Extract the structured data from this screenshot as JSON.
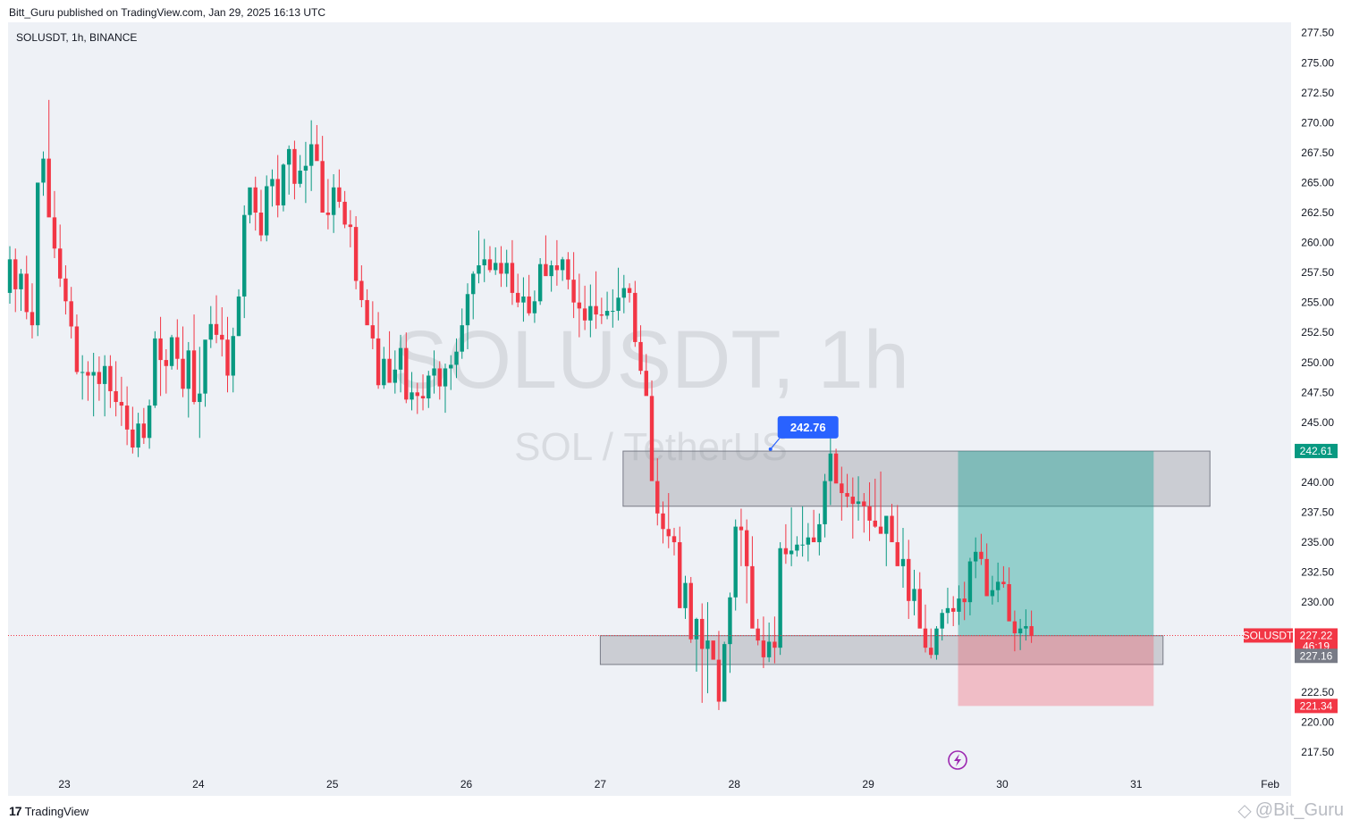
{
  "header": {
    "publish_line": "Bitt_Guru published on TradingView.com, Jan 29, 2025 16:13 UTC"
  },
  "chart_data": {
    "type": "candlestick",
    "symbol_line": "SOLUSDT, 1h, BINANCE",
    "watermark": {
      "line1": "SOLUSDT, 1h",
      "line2": "SOL / TetherUS"
    },
    "ylim": [
      216,
      278
    ],
    "y_ticks": [
      "277.50",
      "275.00",
      "272.50",
      "270.00",
      "267.50",
      "265.00",
      "262.50",
      "260.00",
      "257.50",
      "255.00",
      "252.50",
      "250.00",
      "247.50",
      "245.00",
      "240.00",
      "237.50",
      "235.00",
      "232.50",
      "230.00",
      "222.50",
      "220.00",
      "217.50"
    ],
    "x_ticks": [
      "23",
      "24",
      "25",
      "26",
      "27",
      "28",
      "29",
      "30",
      "31",
      "Feb"
    ],
    "colors": {
      "up": "#089981",
      "down": "#f23645",
      "zone": "#9598a1",
      "target": "#26a69a",
      "stop": "#f7525f",
      "callout": "#2962ff"
    },
    "zones": [
      {
        "name": "resistance-zone",
        "from_day": 27.17,
        "to_day": 31.55,
        "low": 238.0,
        "high": 242.6
      },
      {
        "name": "support-zone",
        "from_day": 27.0,
        "to_day": 31.2,
        "low": 224.8,
        "high": 227.2
      }
    ],
    "position": {
      "from_day": 29.67,
      "to_day": 31.13,
      "entry": 227.2,
      "target": 242.61,
      "stop": 221.34
    },
    "callout": {
      "label": "242.76",
      "price": 242.76,
      "day": 28.27
    },
    "current_price": 227.22,
    "price_labels": [
      {
        "name": "target-price-label",
        "text": "242.61",
        "price": 242.61,
        "color": "#089981"
      },
      {
        "name": "symbol-price-label",
        "text": "227.22",
        "price": 227.22,
        "color": "#f23645",
        "symbol": "SOLUSDT",
        "countdown": "46:19"
      },
      {
        "name": "entry-price-label",
        "text": "227.16",
        "price": 227.16,
        "color": "#787b86"
      },
      {
        "name": "stop-price-label",
        "text": "221.34",
        "price": 221.34,
        "color": "#f23645"
      }
    ],
    "candles_hourly_ohlc": [
      [
        255.8,
        259.7,
        254.9,
        258.6
      ],
      [
        258.6,
        259.5,
        254.2,
        256.1
      ],
      [
        256.1,
        257.8,
        254.3,
        257.4
      ],
      [
        257.4,
        258.9,
        253.6,
        254.2
      ],
      [
        254.2,
        256.6,
        252.0,
        253.1
      ],
      [
        253.1,
        264.6,
        252.2,
        265.0
      ],
      [
        265.0,
        267.6,
        263.9,
        267.0
      ],
      [
        267.0,
        271.9,
        262.5,
        262.1
      ],
      [
        262.1,
        264.3,
        258.7,
        259.5
      ],
      [
        259.5,
        261.5,
        256.3,
        257.0
      ],
      [
        257.0,
        258.1,
        254.0,
        255.1
      ],
      [
        255.1,
        256.3,
        252.0,
        253.0
      ],
      [
        253.0,
        254.0,
        249.0,
        249.2
      ],
      [
        249.2,
        250.6,
        246.9,
        249.2
      ],
      [
        249.2,
        250.1,
        246.8,
        248.9
      ],
      [
        248.9,
        250.8,
        245.5,
        249.2
      ],
      [
        249.2,
        250.5,
        246.8,
        248.2
      ],
      [
        248.2,
        250.6,
        245.5,
        249.7
      ],
      [
        249.7,
        250.6,
        246.2,
        247.6
      ],
      [
        247.6,
        250.1,
        245.5,
        246.7
      ],
      [
        246.7,
        248.8,
        244.7,
        246.4
      ],
      [
        246.4,
        248.0,
        243.1,
        244.4
      ],
      [
        244.4,
        246.3,
        242.4,
        242.9
      ],
      [
        242.9,
        245.8,
        242.1,
        244.9
      ],
      [
        244.9,
        246.2,
        243.2,
        243.7
      ],
      [
        243.7,
        246.9,
        242.8,
        246.4
      ],
      [
        246.4,
        252.6,
        246.2,
        252.0
      ],
      [
        252.0,
        253.8,
        247.2,
        250.2
      ],
      [
        250.2,
        251.1,
        247.4,
        249.7
      ],
      [
        249.7,
        252.3,
        249.4,
        252.1
      ],
      [
        252.1,
        253.6,
        249.4,
        250.3
      ],
      [
        250.3,
        253.0,
        247.1,
        247.8
      ],
      [
        247.8,
        251.7,
        245.4,
        251.0
      ],
      [
        251.0,
        254.0,
        246.5,
        246.7
      ],
      [
        246.7,
        251.3,
        243.7,
        247.4
      ],
      [
        247.4,
        251.8,
        246.3,
        251.9
      ],
      [
        251.9,
        254.7,
        251.2,
        253.2
      ],
      [
        253.2,
        255.6,
        251.6,
        252.3
      ],
      [
        252.3,
        254.6,
        250.5,
        251.9
      ],
      [
        251.9,
        253.8,
        247.5,
        248.9
      ],
      [
        248.9,
        252.9,
        247.5,
        252.2
      ],
      [
        252.2,
        256.1,
        252.2,
        255.5
      ],
      [
        255.5,
        263.1,
        253.7,
        262.3
      ],
      [
        262.3,
        264.4,
        261.6,
        264.6
      ],
      [
        264.6,
        265.5,
        261.0,
        262.5
      ],
      [
        262.5,
        264.4,
        260.1,
        260.6
      ],
      [
        260.6,
        265.6,
        260.1,
        264.7
      ],
      [
        264.7,
        266.1,
        263.0,
        265.3
      ],
      [
        265.3,
        267.3,
        262.1,
        263.1
      ],
      [
        263.1,
        266.6,
        262.6,
        266.5
      ],
      [
        266.5,
        268.1,
        264.0,
        267.8
      ],
      [
        267.8,
        268.5,
        263.6,
        264.9
      ],
      [
        264.9,
        267.3,
        264.6,
        266.0
      ],
      [
        266.0,
        268.4,
        263.3,
        266.4
      ],
      [
        266.4,
        270.2,
        264.3,
        268.2
      ],
      [
        268.2,
        269.8,
        266.9,
        266.8
      ],
      [
        266.8,
        268.9,
        264.2,
        262.5
      ],
      [
        262.5,
        265.3,
        261.1,
        262.3
      ],
      [
        262.3,
        265.7,
        260.8,
        264.6
      ],
      [
        264.6,
        266.1,
        262.9,
        263.4
      ],
      [
        263.4,
        264.3,
        261.2,
        261.5
      ],
      [
        261.5,
        262.7,
        259.6,
        261.3
      ],
      [
        261.3,
        262.2,
        256.1,
        256.8
      ],
      [
        256.8,
        258.1,
        254.6,
        255.2
      ],
      [
        255.2,
        256.1,
        253.4,
        253.1
      ],
      [
        253.1,
        255.1,
        251.1,
        252.0
      ],
      [
        252.0,
        254.2,
        247.8,
        248.1
      ],
      [
        248.1,
        251.3,
        247.8,
        250.3
      ],
      [
        250.3,
        252.6,
        248.5,
        248.3
      ],
      [
        248.3,
        251.0,
        247.4,
        249.4
      ],
      [
        249.4,
        252.3,
        247.5,
        251.2
      ],
      [
        251.2,
        252.5,
        246.6,
        246.9
      ],
      [
        246.9,
        249.2,
        246.0,
        247.5
      ],
      [
        247.5,
        248.3,
        245.7,
        247.2
      ],
      [
        247.2,
        249.0,
        246.0,
        247.0
      ],
      [
        247.0,
        249.3,
        246.2,
        248.9
      ],
      [
        248.9,
        251.0,
        247.4,
        249.5
      ],
      [
        249.5,
        250.1,
        246.9,
        248.0
      ],
      [
        248.0,
        249.9,
        245.8,
        249.5
      ],
      [
        249.5,
        250.6,
        247.7,
        249.8
      ],
      [
        249.8,
        252.0,
        248.7,
        250.9
      ],
      [
        250.9,
        254.5,
        250.3,
        253.1
      ],
      [
        253.1,
        256.6,
        251.1,
        255.7
      ],
      [
        255.7,
        257.6,
        253.6,
        257.4
      ],
      [
        257.4,
        261.0,
        256.6,
        258.1
      ],
      [
        258.1,
        260.3,
        256.7,
        258.6
      ],
      [
        258.6,
        259.7,
        257.5,
        257.7
      ],
      [
        257.7,
        259.6,
        257.3,
        258.3
      ],
      [
        258.3,
        259.7,
        256.3,
        257.4
      ],
      [
        257.4,
        259.4,
        256.3,
        258.3
      ],
      [
        258.3,
        260.2,
        254.8,
        255.8
      ],
      [
        255.8,
        257.4,
        254.6,
        255.0
      ],
      [
        255.0,
        257.1,
        253.4,
        255.5
      ],
      [
        255.5,
        257.3,
        253.9,
        254.1
      ],
      [
        254.1,
        256.0,
        253.3,
        255.1
      ],
      [
        255.1,
        258.7,
        254.8,
        258.2
      ],
      [
        258.2,
        260.6,
        257.3,
        257.2
      ],
      [
        257.2,
        258.5,
        255.9,
        258.1
      ],
      [
        258.1,
        260.2,
        256.4,
        257.7
      ],
      [
        257.7,
        258.8,
        256.8,
        258.6
      ],
      [
        258.6,
        259.2,
        256.1,
        256.9
      ],
      [
        256.9,
        259.2,
        253.7,
        255.0
      ],
      [
        255.0,
        257.4,
        252.1,
        254.5
      ],
      [
        254.5,
        256.4,
        252.7,
        253.5
      ],
      [
        253.5,
        256.5,
        252.1,
        254.7
      ],
      [
        254.7,
        257.6,
        252.8,
        254.0
      ],
      [
        254.0,
        255.4,
        253.2,
        253.9
      ],
      [
        253.9,
        255.9,
        253.6,
        254.3
      ],
      [
        254.3,
        256.1,
        252.9,
        254.3
      ],
      [
        254.3,
        257.9,
        253.5,
        255.4
      ],
      [
        255.4,
        257.3,
        254.1,
        256.2
      ],
      [
        256.2,
        256.6,
        255.0,
        255.8
      ],
      [
        255.8,
        256.8,
        251.3,
        251.7
      ],
      [
        251.7,
        253.1,
        249.0,
        249.3
      ],
      [
        249.3,
        250.7,
        247.6,
        247.2
      ],
      [
        247.2,
        248.5,
        243.6,
        240.1
      ],
      [
        240.1,
        242.0,
        236.4,
        237.4
      ],
      [
        237.4,
        238.4,
        234.9,
        236.1
      ],
      [
        236.1,
        239.1,
        234.5,
        235.5
      ],
      [
        235.5,
        236.2,
        233.9,
        235.0
      ],
      [
        235.0,
        236.3,
        229.5,
        229.5
      ],
      [
        229.5,
        232.2,
        228.6,
        231.6
      ],
      [
        231.6,
        232.1,
        226.6,
        226.9
      ],
      [
        226.9,
        228.7,
        224.2,
        228.6
      ],
      [
        228.6,
        229.9,
        221.6,
        226.1
      ],
      [
        226.1,
        230.0,
        222.4,
        226.8
      ],
      [
        226.8,
        226.7,
        225.3,
        225.2
      ],
      [
        225.2,
        227.6,
        221.0,
        221.7
      ],
      [
        221.7,
        226.7,
        221.8,
        226.5
      ],
      [
        226.5,
        230.8,
        224.1,
        230.4
      ],
      [
        230.4,
        236.9,
        229.3,
        236.3
      ],
      [
        236.3,
        237.8,
        233.0,
        236.0
      ],
      [
        236.0,
        236.9,
        229.9,
        233.0
      ],
      [
        233.0,
        235.5,
        230.5,
        227.8
      ],
      [
        227.8,
        228.6,
        226.4,
        226.8
      ],
      [
        226.8,
        228.8,
        224.5,
        225.4
      ],
      [
        225.4,
        228.3,
        225.0,
        226.7
      ],
      [
        226.7,
        228.8,
        224.9,
        226.2
      ],
      [
        226.2,
        235.0,
        225.6,
        234.5
      ],
      [
        234.5,
        236.5,
        233.2,
        234.0
      ],
      [
        234.0,
        237.9,
        233.0,
        234.3
      ],
      [
        234.3,
        235.5,
        233.8,
        234.8
      ],
      [
        234.8,
        238.0,
        233.8,
        234.8
      ],
      [
        234.8,
        236.6,
        233.4,
        235.4
      ],
      [
        235.4,
        237.7,
        235.4,
        235.0
      ],
      [
        235.0,
        237.4,
        233.9,
        236.5
      ],
      [
        236.5,
        240.7,
        235.4,
        240.1
      ],
      [
        240.1,
        243.8,
        238.1,
        242.4
      ],
      [
        242.4,
        242.8,
        240.2,
        239.9
      ],
      [
        239.9,
        241.3,
        236.8,
        239.1
      ],
      [
        239.1,
        240.7,
        237.9,
        238.8
      ],
      [
        238.8,
        240.4,
        235.3,
        238.2
      ],
      [
        238.2,
        240.5,
        236.8,
        238.4
      ],
      [
        238.4,
        239.1,
        235.8,
        238.0
      ],
      [
        238.0,
        240.0,
        235.1,
        236.8
      ],
      [
        236.8,
        240.3,
        236.2,
        236.3
      ],
      [
        236.3,
        240.9,
        235.9,
        235.7
      ],
      [
        235.7,
        237.2,
        233.0,
        237.2
      ],
      [
        237.2,
        238.2,
        236.4,
        235.0
      ],
      [
        235.0,
        238.1,
        233.8,
        233.0
      ],
      [
        233.0,
        236.2,
        231.2,
        233.6
      ],
      [
        233.6,
        235.2,
        228.6,
        230.1
      ],
      [
        230.1,
        232.7,
        228.9,
        231.1
      ],
      [
        231.1,
        232.5,
        228.3,
        227.8
      ],
      [
        227.8,
        229.8,
        225.8,
        226.2
      ],
      [
        226.2,
        227.8,
        225.3,
        225.6
      ],
      [
        225.6,
        228.0,
        225.2,
        227.8
      ],
      [
        227.8,
        229.4,
        226.8,
        229.1
      ],
      [
        229.1,
        231.2,
        228.2,
        229.5
      ],
      [
        229.5,
        230.5,
        228.0,
        229.2
      ],
      [
        229.2,
        231.4,
        228.1,
        230.3
      ],
      [
        230.3,
        231.7,
        228.5,
        230.0
      ],
      [
        230.0,
        233.7,
        228.9,
        233.4
      ],
      [
        233.4,
        235.4,
        232.0,
        234.2
      ],
      [
        234.2,
        235.7,
        233.1,
        233.6
      ],
      [
        233.6,
        234.9,
        230.8,
        230.5
      ],
      [
        230.5,
        232.2,
        229.8,
        231.0
      ],
      [
        231.0,
        233.3,
        230.0,
        231.7
      ],
      [
        231.7,
        233.0,
        231.2,
        231.5
      ],
      [
        231.5,
        232.9,
        228.7,
        228.4
      ],
      [
        228.4,
        229.3,
        225.9,
        227.4
      ],
      [
        227.4,
        228.6,
        226.0,
        227.8
      ],
      [
        227.8,
        229.4,
        226.8,
        228.0
      ],
      [
        228.0,
        229.3,
        226.6,
        227.2
      ]
    ]
  }
}
